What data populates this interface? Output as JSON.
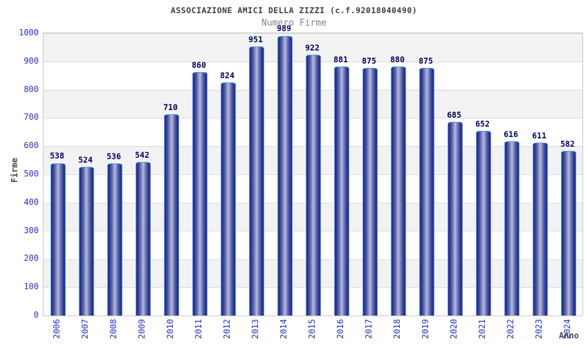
{
  "header": {
    "title": "ASSOCIAZIONE AMICI DELLA ZIZZI (c.f.92018040490)",
    "subtitle": "Numero Firme"
  },
  "chart_data": {
    "type": "bar",
    "title": "ASSOCIAZIONE AMICI DELLA ZIZZI (c.f.92018040490)",
    "subtitle": "Numero Firme",
    "xlabel": "Anno",
    "ylabel": "Firme",
    "categories": [
      "2006",
      "2007",
      "2008",
      "2009",
      "2010",
      "2011",
      "2012",
      "2013",
      "2014",
      "2015",
      "2016",
      "2017",
      "2018",
      "2019",
      "2020",
      "2021",
      "2022",
      "2023",
      "2024"
    ],
    "values": [
      538,
      524,
      536,
      542,
      710,
      860,
      824,
      951,
      989,
      922,
      881,
      875,
      880,
      875,
      685,
      652,
      616,
      611,
      582
    ],
    "ylim": [
      0,
      1000
    ],
    "yticks": [
      0,
      100,
      200,
      300,
      400,
      500,
      600,
      700,
      800,
      900,
      1000
    ],
    "grid": "alternating-horizontal-bands",
    "legend": "none",
    "colors": {
      "tick_label": "#2633cc",
      "value_label": "#000066",
      "title": "#3d3d3d",
      "subtitle": "#828282",
      "axis_title": "#4a4a4a",
      "band_gray": "#f2f2f2",
      "grid_line": "#dcdcdc",
      "plot_border": "#c8c8c8",
      "bar_border": "#58a0f0",
      "bar_dark": "#232a82",
      "bar_light": "#b7bddd",
      "background": "#ffffff"
    }
  }
}
